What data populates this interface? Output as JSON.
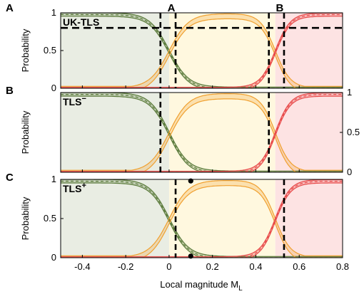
{
  "chart_data": {
    "type": "line",
    "xlabel": "Local magnitude M",
    "xlabel_sub": "L",
    "xlim": [
      -0.5,
      0.8
    ],
    "x_ticks": [
      "-0.4",
      "-0.2",
      "0",
      "0.2",
      "0.4",
      "0.6",
      "0.8"
    ],
    "x_tick_values": [
      -0.4,
      -0.2,
      0,
      0.2,
      0.4,
      0.6,
      0.8
    ],
    "colors": {
      "green_region": "#e9ede3",
      "yellow_region": "#fff8df",
      "red_region": "#fde3e3",
      "green_line": "#5a7a3a",
      "orange_line": "#f0a030",
      "red_line": "#e84a4a"
    },
    "panels": [
      {
        "letter": "A",
        "name": "UK-TLS",
        "ylabel": "Probability",
        "ylim": [
          0,
          1
        ],
        "y_ticks": [
          "0",
          "0.5",
          "1"
        ],
        "y_tick_values": [
          0,
          0.5,
          1
        ],
        "y_axis_side": "left",
        "thresholds": [
          0.03,
          0.53
        ],
        "threshold_lines_at": [
          -0.04,
          0.03,
          0.46,
          0.53
        ],
        "threshold_labels": [
          "A",
          "B"
        ],
        "horizontal_dashed_level": 0.8,
        "transitions": [
          {
            "series": "green",
            "center": 0.0,
            "width": 0.045
          },
          {
            "series": "red",
            "center": 0.49,
            "width": 0.035
          }
        ]
      },
      {
        "letter": "B",
        "name": "TLS",
        "name_superscript": "−",
        "ylabel": "Probability",
        "ylim": [
          0,
          1
        ],
        "y_ticks": [
          "0",
          "0.5",
          "1"
        ],
        "y_tick_values": [
          0,
          0.5,
          1
        ],
        "y_axis_side": "right",
        "thresholds": [
          -0.04,
          0.46
        ],
        "threshold_lines_at": [
          -0.04,
          0.46
        ],
        "transitions": [
          {
            "series": "green",
            "center": 0.0,
            "width": 0.045
          },
          {
            "series": "red",
            "center": 0.49,
            "width": 0.035
          }
        ]
      },
      {
        "letter": "C",
        "name": "TLS",
        "name_superscript": "+",
        "ylabel": "Probability",
        "ylim": [
          0,
          1
        ],
        "y_ticks": [
          "0",
          "0.5",
          "1"
        ],
        "y_tick_values": [
          0,
          0.5,
          1
        ],
        "y_axis_side": "left",
        "thresholds": [
          0.03,
          0.53
        ],
        "threshold_lines_at": [
          0.03,
          0.53
        ],
        "marker_points": [
          {
            "x": 0.1,
            "y": 0.98
          },
          {
            "x": 0.1,
            "y": 0.02
          }
        ],
        "transitions": [
          {
            "series": "green",
            "center": 0.0,
            "width": 0.045
          },
          {
            "series": "red",
            "center": 0.49,
            "width": 0.035
          }
        ]
      }
    ]
  }
}
